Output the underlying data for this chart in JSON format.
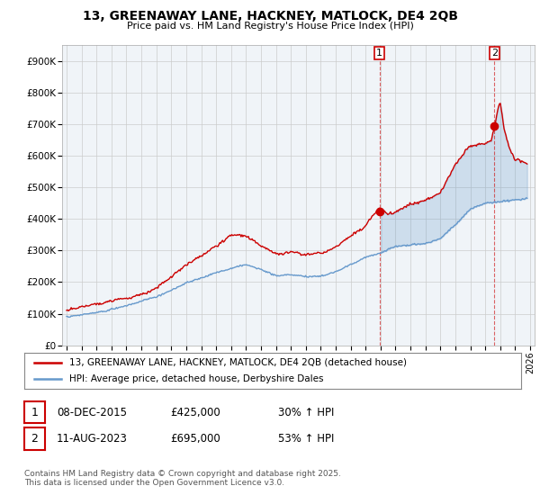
{
  "title": "13, GREENAWAY LANE, HACKNEY, MATLOCK, DE4 2QB",
  "subtitle": "Price paid vs. HM Land Registry's House Price Index (HPI)",
  "ylabel_ticks": [
    "£0",
    "£100K",
    "£200K",
    "£300K",
    "£400K",
    "£500K",
    "£600K",
    "£700K",
    "£800K",
    "£900K"
  ],
  "ytick_values": [
    0,
    100000,
    200000,
    300000,
    400000,
    500000,
    600000,
    700000,
    800000,
    900000
  ],
  "ylim": [
    0,
    950000
  ],
  "xlim_start": 1994.7,
  "xlim_end": 2026.3,
  "xtick_years": [
    1995,
    1996,
    1997,
    1998,
    1999,
    2000,
    2001,
    2002,
    2003,
    2004,
    2005,
    2006,
    2007,
    2008,
    2009,
    2010,
    2011,
    2012,
    2013,
    2014,
    2015,
    2016,
    2017,
    2018,
    2019,
    2020,
    2021,
    2022,
    2023,
    2024,
    2025,
    2026
  ],
  "property_color": "#cc0000",
  "hpi_color": "#6699cc",
  "hpi_fill_color": "#ddeeff",
  "grid_color": "#cccccc",
  "background_color": "#f0f4f8",
  "sale1_x": 2015.93,
  "sale1_y": 425000,
  "sale2_x": 2023.62,
  "sale2_y": 695000,
  "vline1_x": 2015.93,
  "vline2_x": 2023.62,
  "legend_line1": "13, GREENAWAY LANE, HACKNEY, MATLOCK, DE4 2QB (detached house)",
  "legend_line2": "HPI: Average price, detached house, Derbyshire Dales",
  "annotation1_date": "08-DEC-2015",
  "annotation1_price": "£425,000",
  "annotation1_hpi": "30% ↑ HPI",
  "annotation2_date": "11-AUG-2023",
  "annotation2_price": "£695,000",
  "annotation2_hpi": "53% ↑ HPI",
  "footer": "Contains HM Land Registry data © Crown copyright and database right 2025.\nThis data is licensed under the Open Government Licence v3.0."
}
